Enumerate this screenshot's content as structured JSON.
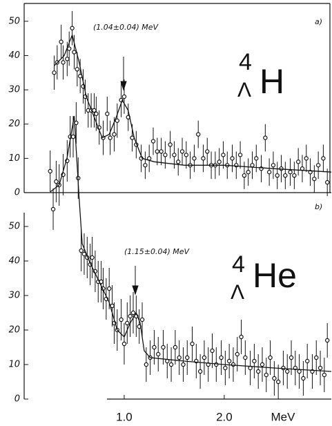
{
  "chart_data": [
    {
      "type": "scatter",
      "panel_label": "a)",
      "annotation": "(1.04±0.04) MeV",
      "nucleus": {
        "mass": "4",
        "sub": "Λ",
        "element": "H"
      },
      "color": "#111",
      "xlim": [
        0,
        3.07
      ],
      "ylim": [
        0,
        55
      ],
      "yticks": [
        0,
        10,
        20,
        30,
        40,
        50
      ],
      "x": [
        0.3,
        0.33,
        0.37,
        0.39,
        0.43,
        0.45,
        0.48,
        0.5,
        0.53,
        0.56,
        0.59,
        0.61,
        0.64,
        0.67,
        0.7,
        0.72,
        0.75,
        0.79,
        0.83,
        0.86,
        0.9,
        0.93,
        0.97,
        1.0,
        1.04,
        1.08,
        1.12,
        1.17,
        1.21,
        1.25,
        1.29,
        1.33,
        1.37,
        1.41,
        1.46,
        1.5,
        1.54,
        1.58,
        1.62,
        1.66,
        1.7,
        1.74,
        1.79,
        1.83,
        1.87,
        1.91,
        1.95,
        1.99,
        2.03,
        2.08,
        2.12,
        2.16,
        2.2,
        2.24,
        2.28,
        2.32,
        2.37,
        2.41,
        2.45,
        2.49,
        2.53,
        2.57,
        2.61,
        2.66,
        2.7,
        2.74,
        2.78,
        2.82,
        2.86,
        2.9,
        2.94,
        2.99,
        3.03
      ],
      "values": [
        35,
        38,
        44,
        38,
        39,
        42,
        48,
        41,
        36,
        34,
        31,
        28,
        24,
        24,
        24,
        23,
        19,
        16,
        23,
        16,
        17,
        21,
        27,
        28,
        22,
        16,
        14,
        10,
        8,
        10,
        15,
        12,
        12,
        11,
        14,
        11,
        9,
        12,
        11,
        8,
        10,
        17,
        10,
        12,
        8,
        8,
        9,
        11,
        8,
        10,
        8,
        11,
        5,
        6,
        8,
        10,
        7,
        16,
        6,
        8,
        5,
        7,
        5,
        6,
        5,
        9,
        7,
        10,
        6,
        4,
        8,
        10,
        3
      ],
      "errors": [
        5,
        5,
        5,
        5,
        5,
        5,
        5,
        5,
        5,
        5,
        5,
        5,
        5,
        5,
        5,
        5,
        5,
        5,
        5,
        5,
        5,
        5,
        5,
        5,
        4,
        4,
        4,
        4,
        4,
        4,
        4,
        4,
        4,
        4,
        4,
        4,
        4,
        4,
        4,
        4,
        4,
        4,
        4,
        4,
        4,
        4,
        4,
        4,
        4,
        4,
        4,
        4,
        4,
        4,
        4,
        4,
        4,
        4,
        4,
        4,
        4,
        4,
        4,
        4,
        4,
        4,
        4,
        4,
        4,
        4,
        4,
        4,
        4
      ],
      "fit_x": [
        0.3,
        0.4,
        0.48,
        0.55,
        0.62,
        0.7,
        0.78,
        0.85,
        0.92,
        0.98,
        1.04,
        1.1,
        1.18,
        1.3,
        1.6,
        2.0,
        2.5,
        3.07
      ],
      "fit_values": [
        37,
        40,
        46,
        38,
        28,
        22,
        16,
        17,
        22,
        27,
        24,
        16,
        10,
        9,
        8,
        8,
        7,
        6
      ]
    },
    {
      "type": "scatter",
      "panel_label": "b)",
      "annotation": "(1.15±0.04) MeV",
      "nucleus": {
        "mass": "4",
        "sub": "Λ",
        "element": "He"
      },
      "color": "#111",
      "xlim": [
        0,
        3.07
      ],
      "ylim": [
        0,
        115
      ],
      "yticks": [
        0,
        10,
        20,
        30,
        40,
        50
      ],
      "xticks": [
        {
          "value": 1,
          "label": "1.0"
        },
        {
          "value": 2,
          "label": "2.0"
        }
      ],
      "xlabel": "MeV",
      "x": [
        0.26,
        0.29,
        0.32,
        0.35,
        0.39,
        0.43,
        0.46,
        0.49,
        0.52,
        0.54,
        0.57,
        0.6,
        0.63,
        0.66,
        0.68,
        0.71,
        0.74,
        0.77,
        0.79,
        0.82,
        0.85,
        0.88,
        0.9,
        0.93,
        0.97,
        1.0,
        1.03,
        1.06,
        1.09,
        1.12,
        1.15,
        1.18,
        1.22,
        1.26,
        1.3,
        1.34,
        1.39,
        1.43,
        1.47,
        1.51,
        1.55,
        1.59,
        1.63,
        1.68,
        1.72,
        1.76,
        1.8,
        1.84,
        1.88,
        1.92,
        1.97,
        2.01,
        2.05,
        2.09,
        2.13,
        2.17,
        2.21,
        2.26,
        2.3,
        2.34,
        2.38,
        2.42,
        2.46,
        2.5,
        2.54,
        2.59,
        2.63,
        2.67,
        2.71,
        2.75,
        2.79,
        2.83,
        2.88,
        2.92,
        2.96,
        3.0,
        3.03
      ],
      "values": [
        66,
        55,
        63,
        62,
        65,
        69,
        76,
        76,
        80,
        64,
        43,
        42,
        41,
        39,
        41,
        37,
        34,
        34,
        32,
        29,
        32,
        27,
        22,
        20,
        23,
        16,
        22,
        24,
        25,
        24,
        21,
        23,
        10,
        12,
        15,
        13,
        15,
        11,
        10,
        15,
        12,
        10,
        12,
        16,
        11,
        8,
        12,
        10,
        14,
        10,
        12,
        9,
        11,
        10,
        13,
        18,
        12,
        9,
        11,
        8,
        10,
        7,
        12,
        6,
        5,
        9,
        8,
        12,
        9,
        8,
        6,
        11,
        8,
        12,
        9,
        7,
        17
      ],
      "errors": [
        6,
        6,
        6,
        6,
        6,
        6,
        6,
        6,
        6,
        6,
        6,
        6,
        6,
        6,
        6,
        6,
        6,
        6,
        6,
        6,
        6,
        6,
        6,
        6,
        6,
        6,
        6,
        6,
        6,
        6,
        5,
        5,
        5,
        5,
        5,
        5,
        5,
        5,
        5,
        5,
        5,
        5,
        5,
        5,
        5,
        5,
        5,
        5,
        5,
        5,
        5,
        5,
        5,
        5,
        5,
        5,
        5,
        5,
        5,
        5,
        5,
        5,
        5,
        5,
        5,
        5,
        5,
        5,
        5,
        5,
        5,
        5,
        5,
        5,
        5,
        5,
        5
      ],
      "fit_x": [
        0.26,
        0.35,
        0.43,
        0.5,
        0.55,
        0.58,
        0.65,
        0.75,
        0.85,
        0.93,
        1.0,
        1.06,
        1.12,
        1.16,
        1.2,
        1.26,
        1.6,
        2.0,
        2.5,
        3.07
      ],
      "fit_values": [
        60,
        62,
        70,
        82,
        58,
        45,
        40,
        34,
        28,
        20,
        18,
        22,
        25,
        22,
        14,
        12,
        11,
        10,
        9,
        8
      ]
    }
  ]
}
